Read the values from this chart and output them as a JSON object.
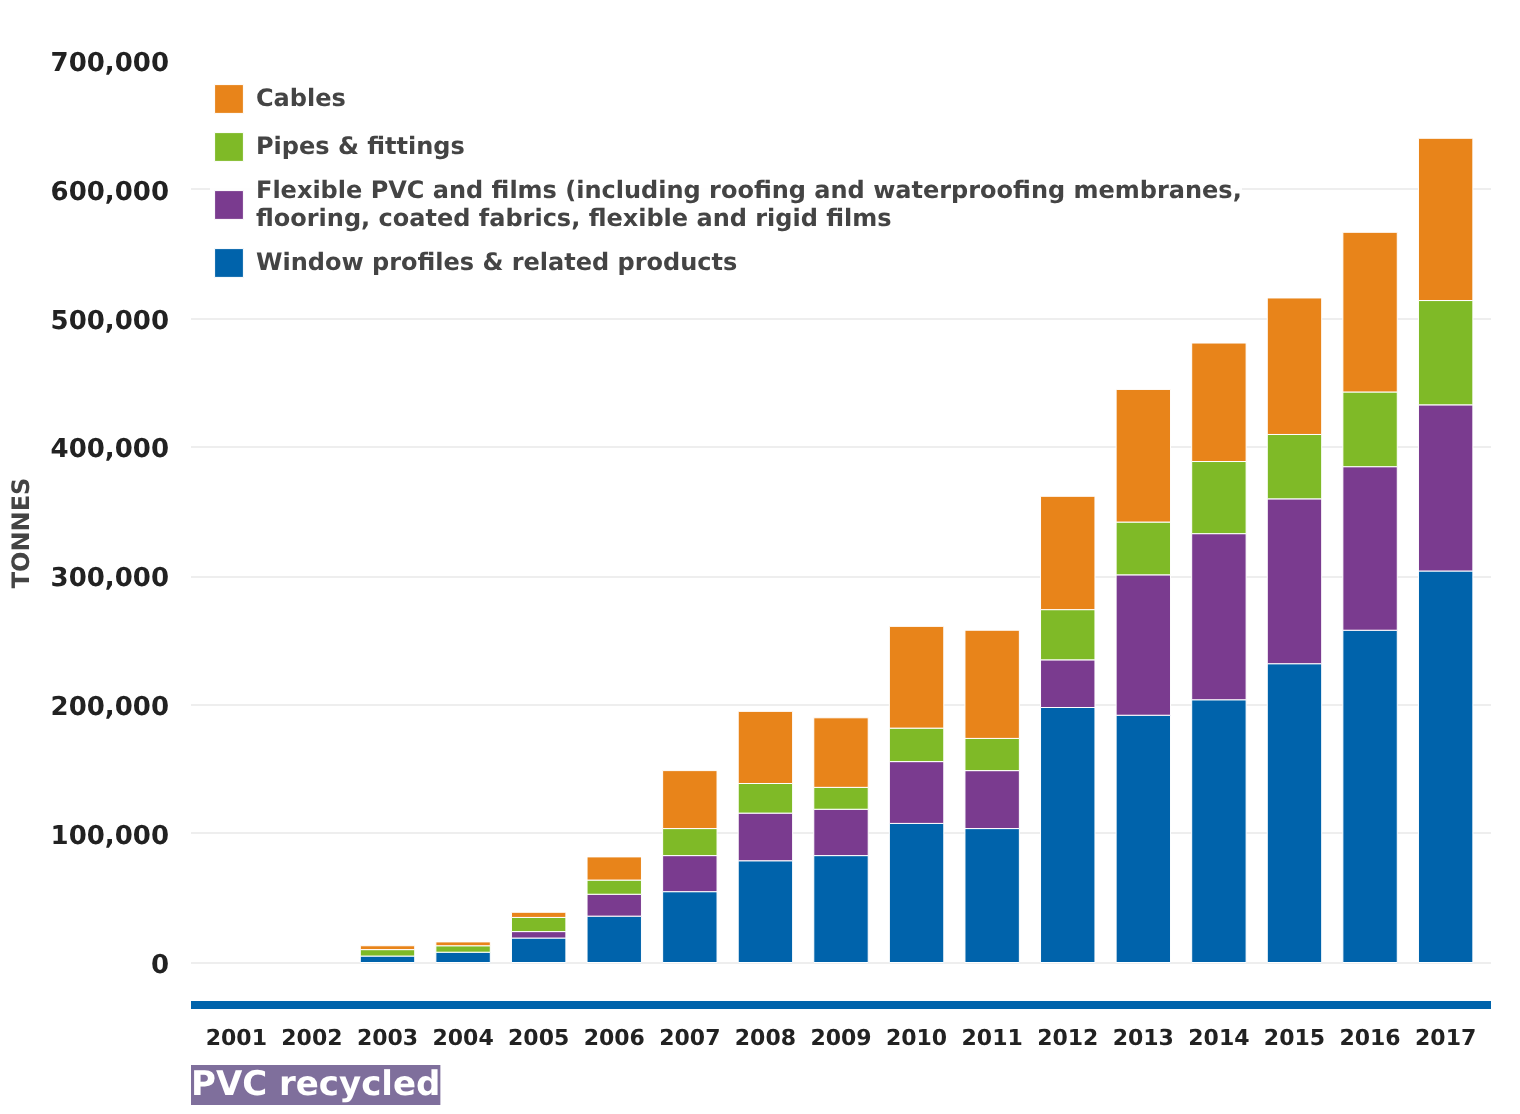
{
  "chart_data": {
    "type": "bar",
    "stacked": true,
    "title": "PVC recycled",
    "ylabel": "TONNES",
    "categories": [
      "2001",
      "2002",
      "2003",
      "2004",
      "2005",
      "2006",
      "2007",
      "2008",
      "2009",
      "2010",
      "2011",
      "2012",
      "2013",
      "2014",
      "2015",
      "2016",
      "2017"
    ],
    "series": [
      {
        "name": "Window profiles & related products",
        "color": "#0063ab",
        "values": [
          null,
          null,
          5000,
          8000,
          19000,
          36000,
          55000,
          79000,
          83000,
          108000,
          104000,
          198000,
          192000,
          204000,
          232000,
          258000,
          304000
        ]
      },
      {
        "name": "Flexible PVC and films (including roofing and waterproofing membranes, flooring, coated fabrics, flexible and rigid films",
        "color": "#7a3b8f",
        "values": [
          null,
          null,
          null,
          null,
          5000,
          17000,
          28000,
          37000,
          36000,
          48000,
          45000,
          37000,
          109000,
          129000,
          128000,
          127000,
          129000
        ]
      },
      {
        "name": "Pipes & fittings",
        "color": "#7fba27",
        "values": [
          null,
          null,
          5000,
          5000,
          11000,
          11000,
          21000,
          23000,
          17000,
          26000,
          25000,
          39000,
          41000,
          56000,
          50000,
          58000,
          81000
        ]
      },
      {
        "name": "Cables",
        "color": "#e8841a",
        "values": [
          null,
          null,
          3000,
          3000,
          4000,
          18000,
          45000,
          56000,
          54000,
          79000,
          84000,
          88000,
          103000,
          92000,
          106000,
          124000,
          126000
        ]
      }
    ],
    "ylim": [
      -33000,
      700000
    ],
    "yticks": [
      {
        "value": 0,
        "label": "0"
      },
      {
        "value": 100000,
        "label": "100,000"
      },
      {
        "value": 200000,
        "label": "200,000"
      },
      {
        "value": 300000,
        "label": "300,000"
      },
      {
        "value": 400000,
        "label": "400,000"
      },
      {
        "value": 500000,
        "label": "500,000"
      },
      {
        "value": 600000,
        "label": "600,000"
      },
      {
        "value": 700000,
        "label": "700,000"
      }
    ],
    "grid": "y",
    "legend": "top left"
  }
}
